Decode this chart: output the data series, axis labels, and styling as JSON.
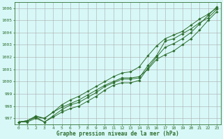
{
  "title": "Graphe pression niveau de la mer (hPa)",
  "background_color": "#d8f8f8",
  "grid_color": "#aaaaaa",
  "line_color": "#2d6e2d",
  "xlim": [
    -0.5,
    23.5
  ],
  "ylim": [
    996.5,
    1006.5
  ],
  "yticks": [
    997,
    998,
    999,
    1000,
    1001,
    1002,
    1003,
    1004,
    1005,
    1006
  ],
  "xticks": [
    0,
    1,
    2,
    3,
    4,
    5,
    6,
    7,
    8,
    9,
    10,
    11,
    12,
    13,
    14,
    15,
    16,
    17,
    18,
    19,
    20,
    21,
    22,
    23
  ],
  "series": [
    [
      996.7,
      996.8,
      997.1,
      997.0,
      997.5,
      997.9,
      998.2,
      998.5,
      998.9,
      999.3,
      999.7,
      1000.0,
      1000.3,
      1000.3,
      1000.4,
      1001.0,
      1001.8,
      1002.2,
      1002.5,
      1003.0,
      1003.5,
      1004.2,
      1005.0,
      1005.7
    ],
    [
      996.7,
      996.8,
      997.1,
      996.7,
      997.2,
      997.7,
      998.1,
      998.3,
      998.7,
      999.1,
      999.6,
      999.9,
      1000.2,
      1000.2,
      1000.3,
      1001.3,
      1002.1,
      1003.3,
      1003.5,
      1003.9,
      1004.3,
      1004.8,
      1005.2,
      1005.9
    ],
    [
      996.7,
      996.8,
      997.2,
      997.0,
      997.5,
      998.1,
      998.5,
      998.8,
      999.2,
      999.6,
      1000.0,
      1000.4,
      1000.7,
      1000.8,
      1001.2,
      1002.1,
      1002.9,
      1003.5,
      1003.8,
      1004.1,
      1004.6,
      1005.1,
      1005.5,
      1006.0
    ],
    [
      996.7,
      996.7,
      997.0,
      996.7,
      997.1,
      997.5,
      997.8,
      998.0,
      998.4,
      998.8,
      999.3,
      999.7,
      999.9,
      999.9,
      1000.1,
      1001.1,
      1002.0,
      1002.8,
      1003.1,
      1003.5,
      1004.0,
      1004.7,
      1005.4,
      1006.1
    ]
  ]
}
